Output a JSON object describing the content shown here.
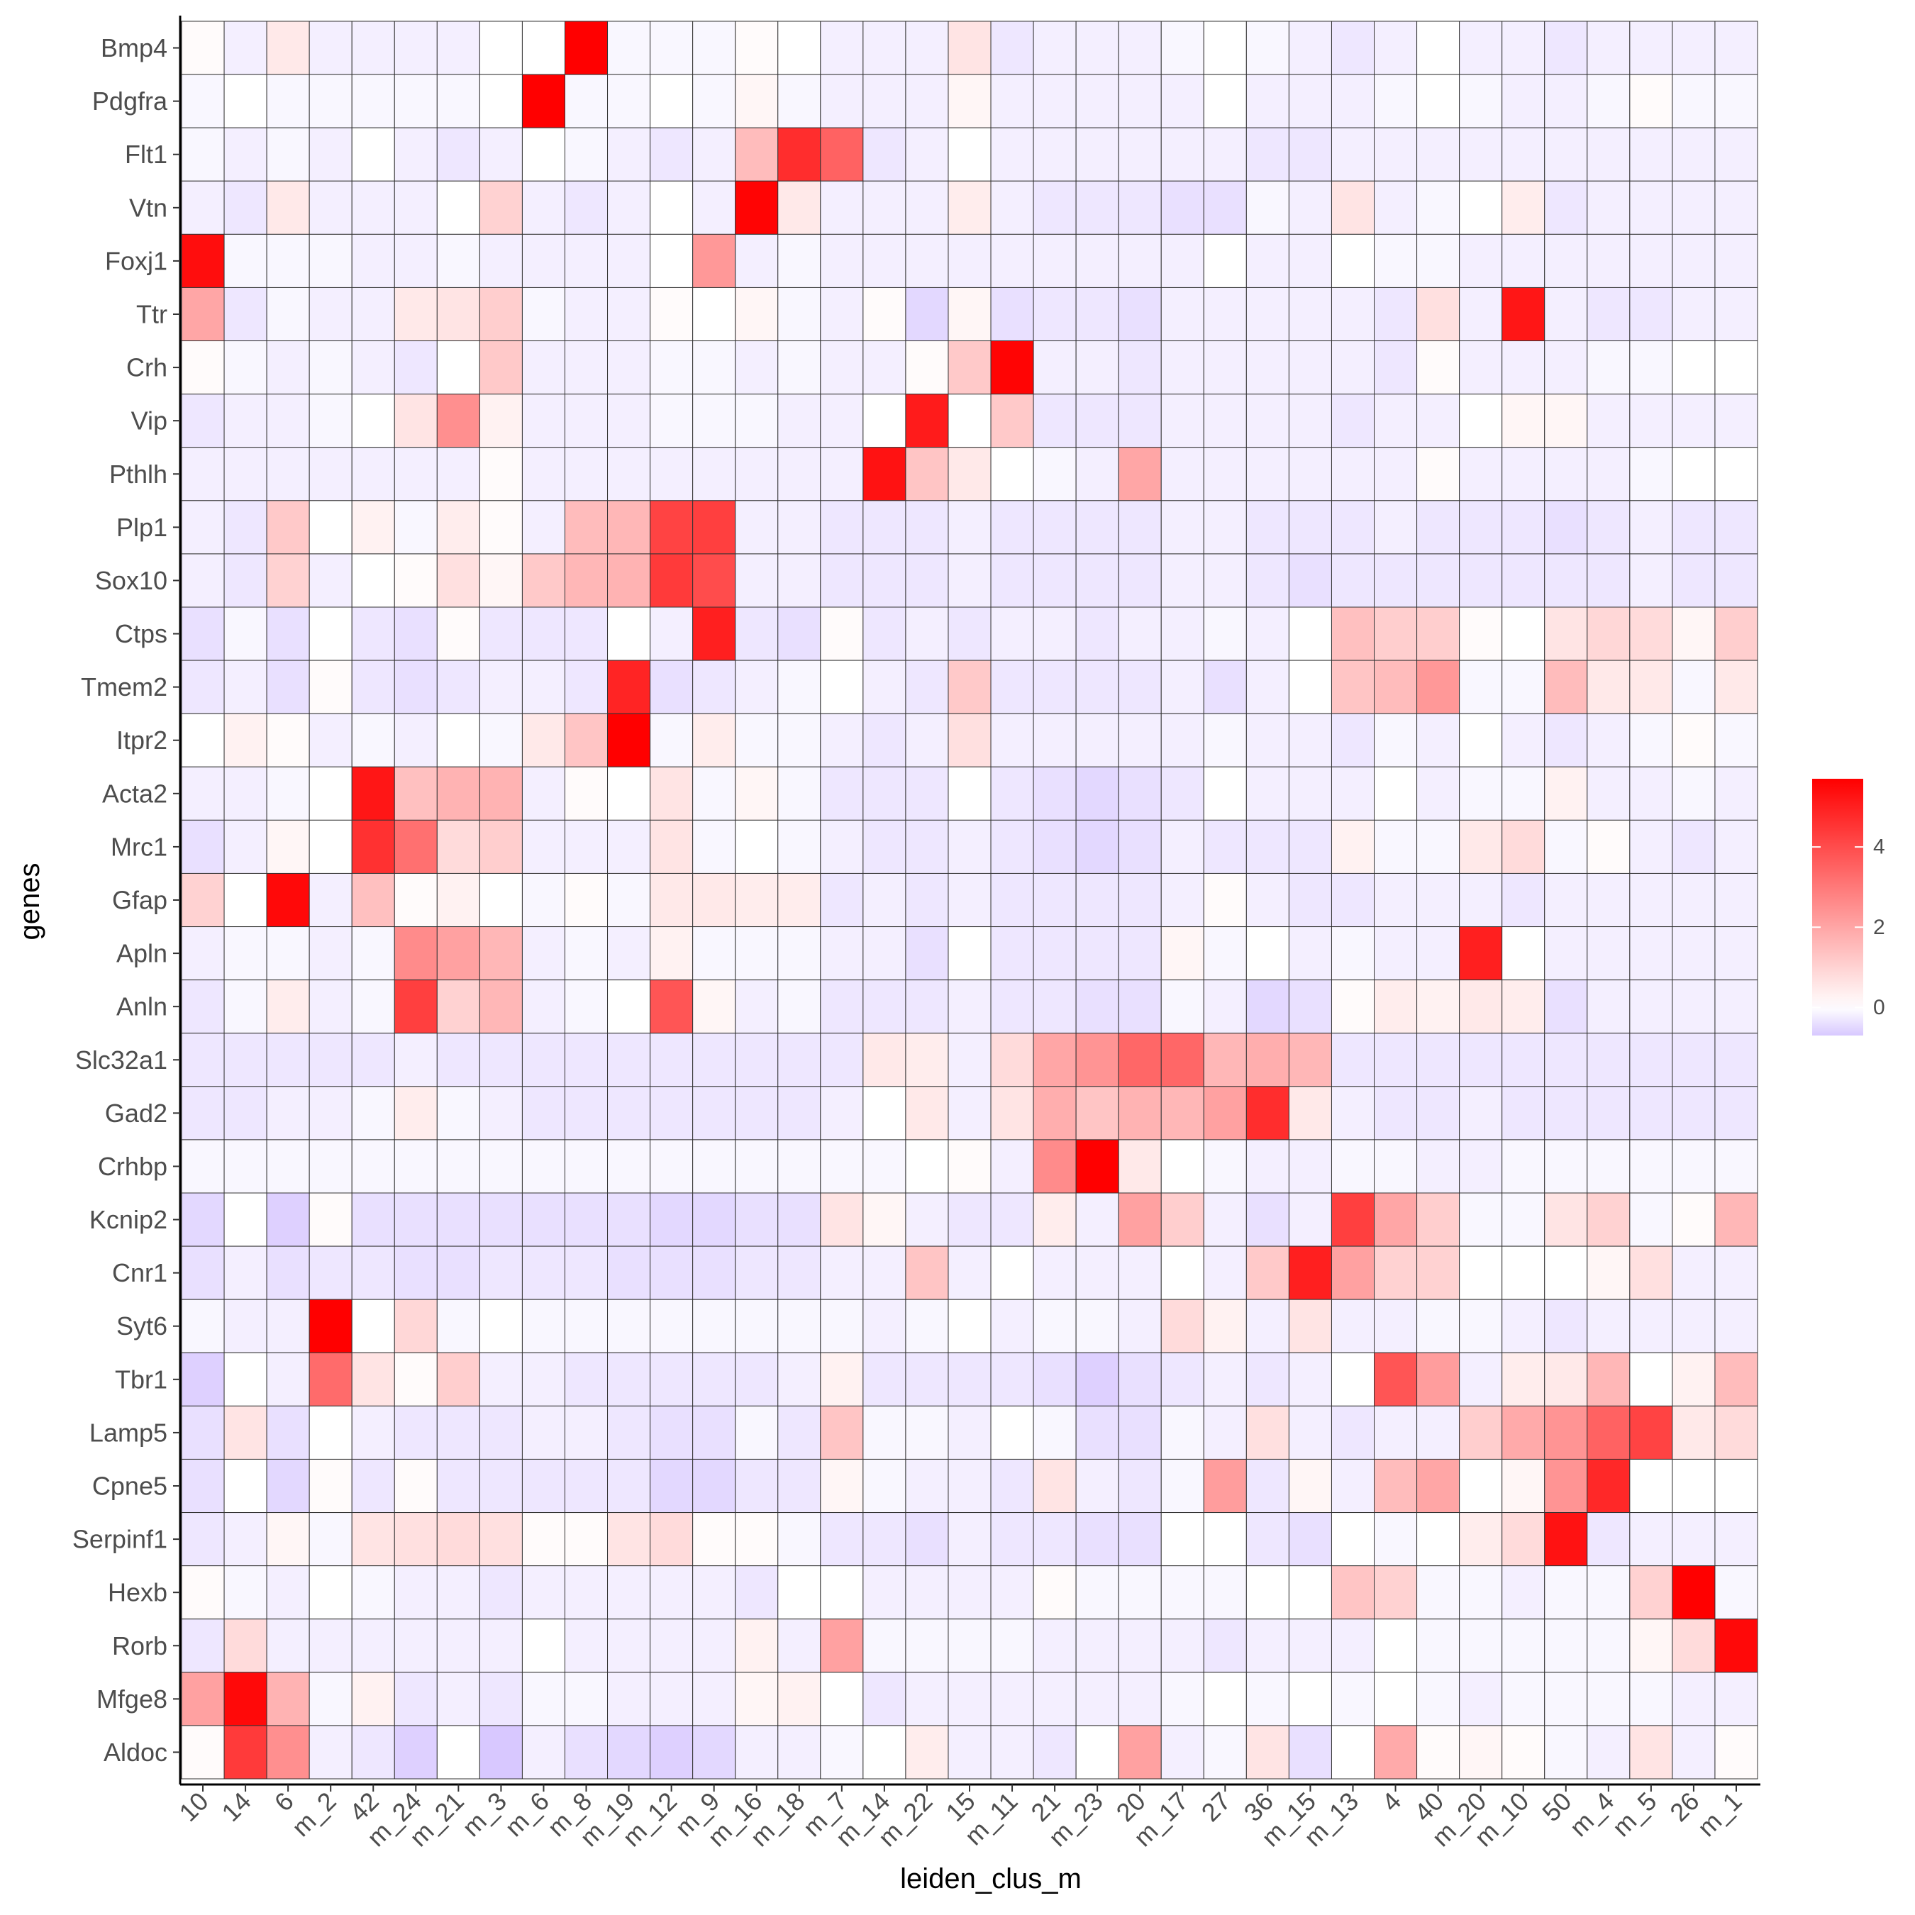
{
  "chart_data": {
    "type": "heatmap",
    "xlabel": "leiden_clus_m",
    "ylabel": "genes",
    "x_categories": [
      "10",
      "14",
      "6",
      "m_2",
      "42",
      "m_24",
      "m_21",
      "m_3",
      "m_6",
      "m_8",
      "m_19",
      "m_12",
      "m_9",
      "m_16",
      "m_18",
      "m_7",
      "m_14",
      "m_22",
      "15",
      "m_11",
      "21",
      "m_23",
      "20",
      "m_17",
      "27",
      "36",
      "m_15",
      "m_13",
      "4",
      "40",
      "m_20",
      "m_10",
      "50",
      "m_4",
      "m_5",
      "26",
      "m_1"
    ],
    "y_categories": [
      "Bmp4",
      "Pdgfra",
      "Flt1",
      "Vtn",
      "Foxj1",
      "Ttr",
      "Crh",
      "Vip",
      "Pthlh",
      "Plp1",
      "Sox10",
      "Ctps",
      "Tmem2",
      "Itpr2",
      "Acta2",
      "Mrc1",
      "Gfap",
      "Apln",
      "Anln",
      "Slc32a1",
      "Gad2",
      "Crhbp",
      "Kcnip2",
      "Cnr1",
      "Syt6",
      "Tbr1",
      "Lamp5",
      "Cpne5",
      "Serpinf1",
      "Hexb",
      "Rorb",
      "Mfge8",
      "Aldoc"
    ],
    "values": [
      [
        0.1,
        -0.2,
        0.5,
        -0.2,
        -0.2,
        -0.2,
        -0.2,
        0,
        0,
        5.7,
        -0.1,
        -0.1,
        -0.1,
        0.1,
        0,
        -0.2,
        -0.2,
        -0.2,
        0.6,
        -0.3,
        -0.2,
        -0.2,
        -0.2,
        -0.1,
        0,
        -0.1,
        -0.2,
        -0.3,
        -0.2,
        0,
        -0.2,
        -0.2,
        -0.3,
        -0.2,
        -0.2,
        -0.2,
        -0.2
      ],
      [
        -0.1,
        0,
        -0.1,
        -0.1,
        -0.1,
        -0.1,
        -0.1,
        0,
        5.7,
        -0.1,
        -0.1,
        0,
        -0.1,
        0.2,
        -0.1,
        -0.2,
        -0.2,
        -0.2,
        0.2,
        -0.2,
        -0.2,
        -0.2,
        -0.2,
        -0.2,
        0,
        -0.2,
        -0.2,
        -0.2,
        -0.1,
        0,
        -0.1,
        -0.2,
        -0.2,
        -0.1,
        0.1,
        -0.1,
        -0.1
      ],
      [
        -0.1,
        -0.2,
        -0.1,
        -0.2,
        0,
        -0.2,
        -0.3,
        -0.2,
        0,
        -0.1,
        -0.2,
        -0.3,
        -0.2,
        1.5,
        4.7,
        3.5,
        -0.3,
        -0.2,
        0,
        -0.2,
        -0.2,
        -0.2,
        -0.2,
        -0.2,
        -0.2,
        -0.3,
        -0.3,
        -0.2,
        -0.2,
        -0.2,
        -0.2,
        -0.2,
        -0.2,
        -0.2,
        -0.2,
        -0.2,
        -0.2
      ],
      [
        -0.2,
        -0.3,
        0.5,
        -0.2,
        -0.2,
        -0.2,
        0,
        1.0,
        -0.2,
        -0.3,
        -0.2,
        0,
        -0.2,
        5.6,
        0.5,
        -0.2,
        -0.2,
        -0.2,
        0.4,
        -0.2,
        -0.3,
        -0.3,
        -0.3,
        -0.4,
        -0.4,
        -0.1,
        -0.2,
        0.6,
        -0.2,
        -0.1,
        0,
        0.4,
        -0.3,
        -0.2,
        -0.2,
        -0.2,
        -0.2
      ],
      [
        5.4,
        -0.1,
        -0.1,
        -0.1,
        -0.2,
        -0.2,
        -0.1,
        -0.2,
        -0.2,
        -0.2,
        -0.2,
        0,
        2.3,
        -0.2,
        -0.1,
        -0.2,
        -0.2,
        -0.2,
        -0.2,
        -0.2,
        -0.2,
        -0.2,
        -0.2,
        -0.2,
        0,
        -0.2,
        -0.2,
        0,
        -0.1,
        -0.1,
        -0.2,
        -0.2,
        -0.2,
        -0.2,
        -0.2,
        -0.2,
        -0.2
      ],
      [
        2.0,
        -0.3,
        -0.1,
        -0.2,
        -0.2,
        0.5,
        0.6,
        1.1,
        -0.1,
        -0.2,
        -0.2,
        0.1,
        0,
        0.2,
        -0.1,
        -0.2,
        0.1,
        -0.5,
        0.2,
        -0.4,
        -0.3,
        -0.3,
        -0.4,
        -0.2,
        -0.2,
        -0.2,
        -0.2,
        -0.2,
        -0.3,
        0.7,
        -0.2,
        5.2,
        -0.2,
        -0.3,
        -0.3,
        -0.2,
        -0.2
      ],
      [
        0.1,
        -0.1,
        -0.2,
        -0.1,
        -0.2,
        -0.3,
        0,
        1.2,
        -0.2,
        -0.2,
        -0.2,
        -0.1,
        -0.1,
        -0.2,
        -0.1,
        -0.2,
        -0.2,
        0.1,
        1.2,
        5.6,
        -0.2,
        -0.2,
        -0.3,
        -0.2,
        -0.2,
        -0.2,
        -0.2,
        -0.2,
        -0.3,
        0.1,
        -0.2,
        -0.2,
        -0.2,
        -0.1,
        -0.1,
        0,
        0
      ],
      [
        -0.3,
        -0.2,
        -0.2,
        -0.1,
        0,
        0.6,
        2.5,
        0.3,
        -0.2,
        -0.2,
        -0.2,
        -0.1,
        -0.1,
        -0.1,
        -0.2,
        -0.2,
        0,
        5.1,
        0,
        1.2,
        -0.3,
        -0.3,
        -0.3,
        -0.2,
        -0.2,
        -0.2,
        -0.2,
        -0.3,
        -0.2,
        -0.2,
        0,
        0.2,
        0.2,
        -0.2,
        -0.2,
        -0.2,
        -0.2
      ],
      [
        -0.2,
        -0.2,
        -0.2,
        -0.2,
        -0.2,
        -0.2,
        -0.2,
        0.1,
        -0.2,
        -0.2,
        -0.2,
        -0.2,
        -0.2,
        -0.2,
        -0.2,
        -0.2,
        5.3,
        1.3,
        0.5,
        0,
        -0.1,
        -0.2,
        2.0,
        -0.2,
        -0.2,
        -0.2,
        -0.2,
        -0.2,
        -0.2,
        0.1,
        -0.2,
        -0.2,
        -0.2,
        -0.2,
        -0.1,
        0,
        0
      ],
      [
        -0.2,
        -0.3,
        1.2,
        0,
        0.3,
        -0.1,
        0.4,
        0.1,
        -0.2,
        1.5,
        1.6,
        4.2,
        4.3,
        -0.2,
        -0.2,
        -0.3,
        -0.3,
        -0.3,
        -0.2,
        -0.3,
        -0.3,
        -0.3,
        -0.3,
        -0.2,
        -0.2,
        -0.3,
        -0.3,
        -0.3,
        -0.2,
        -0.3,
        -0.3,
        -0.3,
        -0.4,
        -0.3,
        -0.2,
        -0.3,
        -0.3
      ],
      [
        -0.2,
        -0.3,
        1.0,
        -0.2,
        0,
        0.1,
        0.7,
        0.2,
        1.2,
        1.6,
        1.7,
        4.4,
        4.0,
        -0.2,
        -0.2,
        -0.3,
        -0.3,
        -0.3,
        -0.2,
        -0.3,
        -0.3,
        -0.3,
        -0.3,
        -0.2,
        -0.2,
        -0.3,
        -0.4,
        -0.3,
        -0.3,
        -0.3,
        -0.3,
        -0.3,
        -0.3,
        -0.3,
        -0.2,
        -0.3,
        -0.3
      ],
      [
        -0.4,
        -0.1,
        -0.4,
        0,
        -0.3,
        -0.4,
        0.1,
        -0.3,
        -0.3,
        -0.3,
        0,
        -0.2,
        5.0,
        -0.3,
        -0.4,
        0.1,
        -0.3,
        -0.2,
        -0.3,
        -0.2,
        -0.2,
        -0.3,
        -0.2,
        -0.2,
        -0.1,
        -0.2,
        0,
        1.4,
        1.1,
        1.1,
        0.1,
        0,
        0.6,
        0.9,
        0.8,
        0.2,
        1.1
      ],
      [
        -0.3,
        -0.2,
        -0.4,
        0.1,
        -0.3,
        -0.4,
        -0.3,
        -0.2,
        -0.2,
        -0.3,
        4.9,
        -0.4,
        -0.3,
        -0.2,
        -0.1,
        0,
        -0.2,
        -0.3,
        1.2,
        -0.3,
        -0.3,
        -0.3,
        -0.3,
        -0.2,
        -0.4,
        -0.2,
        0,
        1.3,
        1.5,
        2.3,
        -0.1,
        -0.1,
        1.5,
        0.5,
        0.5,
        -0.1,
        0.5
      ],
      [
        0,
        0.3,
        0.1,
        -0.2,
        -0.1,
        -0.2,
        0,
        -0.1,
        0.5,
        1.3,
        5.7,
        -0.1,
        0.4,
        -0.1,
        -0.1,
        -0.2,
        -0.3,
        -0.2,
        0.7,
        -0.2,
        -0.2,
        -0.2,
        -0.2,
        -0.2,
        -0.1,
        -0.2,
        -0.2,
        -0.3,
        -0.1,
        -0.2,
        0,
        -0.2,
        -0.3,
        -0.2,
        -0.1,
        0.1,
        -0.1
      ],
      [
        -0.2,
        -0.2,
        -0.1,
        0,
        5.2,
        1.4,
        1.7,
        1.7,
        -0.2,
        0.1,
        0,
        0.6,
        -0.1,
        0.2,
        -0.1,
        -0.3,
        -0.3,
        -0.3,
        0,
        -0.3,
        -0.4,
        -0.5,
        -0.4,
        -0.3,
        0,
        -0.2,
        -0.2,
        -0.2,
        0,
        -0.2,
        -0.1,
        -0.1,
        0.3,
        -0.2,
        -0.2,
        -0.1,
        -0.2
      ],
      [
        -0.4,
        -0.2,
        0.2,
        0,
        4.6,
        3.2,
        0.8,
        1.1,
        -0.2,
        -0.2,
        -0.2,
        0.6,
        -0.1,
        0,
        -0.1,
        -0.2,
        -0.3,
        -0.3,
        -0.2,
        -0.3,
        -0.4,
        -0.5,
        -0.4,
        -0.2,
        -0.3,
        -0.3,
        -0.3,
        0.3,
        -0.1,
        -0.1,
        0.5,
        0.8,
        -0.1,
        0.1,
        -0.2,
        -0.3,
        -0.2
      ],
      [
        1.0,
        0,
        5.5,
        -0.2,
        1.4,
        0.1,
        0.3,
        0,
        -0.1,
        0.1,
        -0.1,
        0.5,
        0.5,
        0.4,
        0.4,
        -0.3,
        -0.2,
        -0.3,
        -0.2,
        -0.3,
        -0.3,
        -0.3,
        -0.3,
        -0.2,
        0.1,
        -0.2,
        -0.3,
        -0.3,
        -0.2,
        -0.2,
        -0.2,
        -0.3,
        -0.2,
        -0.2,
        -0.2,
        -0.2,
        -0.2
      ],
      [
        -0.2,
        -0.1,
        -0.1,
        -0.2,
        -0.1,
        2.6,
        2.1,
        1.6,
        -0.2,
        -0.1,
        -0.2,
        0.3,
        -0.1,
        -0.1,
        -0.1,
        -0.2,
        -0.2,
        -0.4,
        0,
        -0.3,
        -0.3,
        -0.3,
        -0.3,
        0.2,
        -0.1,
        0,
        -0.2,
        -0.1,
        -0.2,
        -0.2,
        5.0,
        0,
        -0.2,
        -0.2,
        -0.2,
        -0.2,
        -0.2
      ],
      [
        -0.3,
        -0.1,
        0.4,
        -0.2,
        -0.1,
        4.3,
        1.0,
        1.6,
        -0.2,
        -0.1,
        0,
        3.8,
        0.2,
        -0.2,
        -0.1,
        -0.3,
        -0.3,
        -0.3,
        -0.2,
        -0.3,
        -0.3,
        -0.4,
        -0.4,
        -0.1,
        -0.2,
        -0.5,
        -0.4,
        0.1,
        0.4,
        0.3,
        0.5,
        0.4,
        -0.4,
        -0.2,
        -0.2,
        -0.2,
        -0.2
      ],
      [
        -0.3,
        -0.3,
        -0.3,
        -0.3,
        -0.3,
        -0.2,
        -0.3,
        -0.3,
        -0.3,
        -0.3,
        -0.3,
        -0.3,
        -0.3,
        -0.3,
        -0.3,
        -0.3,
        0.5,
        0.4,
        -0.2,
        0.8,
        2.0,
        2.4,
        3.4,
        3.4,
        1.6,
        1.8,
        1.6,
        -0.3,
        -0.3,
        -0.3,
        -0.3,
        -0.3,
        -0.3,
        -0.3,
        -0.3,
        -0.3,
        -0.3
      ],
      [
        -0.3,
        -0.3,
        -0.2,
        -0.2,
        -0.1,
        0.4,
        -0.1,
        -0.2,
        -0.3,
        -0.3,
        -0.3,
        -0.3,
        -0.3,
        -0.3,
        -0.3,
        -0.2,
        0,
        0.5,
        -0.2,
        0.6,
        1.8,
        1.3,
        1.7,
        1.6,
        2.1,
        4.7,
        0.5,
        -0.2,
        -0.3,
        -0.3,
        -0.2,
        -0.3,
        -0.3,
        -0.3,
        -0.3,
        -0.3,
        -0.3
      ],
      [
        -0.1,
        -0.1,
        -0.1,
        -0.1,
        -0.1,
        -0.1,
        -0.1,
        -0.1,
        -0.1,
        -0.1,
        -0.1,
        -0.1,
        -0.1,
        -0.1,
        -0.1,
        -0.1,
        -0.1,
        0,
        0.1,
        -0.2,
        2.6,
        5.7,
        0.5,
        0,
        -0.1,
        -0.2,
        -0.2,
        -0.1,
        -0.1,
        -0.2,
        -0.2,
        -0.1,
        -0.1,
        -0.1,
        -0.1,
        -0.1,
        -0.1
      ],
      [
        -0.5,
        0,
        -0.6,
        0.1,
        -0.4,
        -0.4,
        -0.4,
        -0.4,
        -0.4,
        -0.4,
        -0.4,
        -0.5,
        -0.5,
        -0.4,
        -0.4,
        0.6,
        0.2,
        -0.2,
        -0.3,
        -0.3,
        0.4,
        -0.2,
        2.1,
        1.1,
        -0.2,
        -0.4,
        -0.2,
        4.3,
        2.0,
        1.1,
        -0.1,
        -0.1,
        0.6,
        1.0,
        -0.1,
        0.1,
        1.6
      ],
      [
        -0.4,
        -0.2,
        -0.4,
        -0.3,
        -0.3,
        -0.4,
        -0.4,
        -0.3,
        -0.3,
        -0.3,
        -0.4,
        -0.4,
        -0.4,
        -0.3,
        -0.3,
        -0.2,
        -0.2,
        1.3,
        -0.2,
        0,
        -0.2,
        -0.2,
        -0.2,
        0,
        -0.2,
        1.2,
        5.0,
        2.1,
        1.0,
        1.0,
        0,
        0,
        0,
        0.2,
        0.7,
        -0.2,
        -0.2
      ],
      [
        -0.1,
        -0.2,
        -0.2,
        5.7,
        0,
        0.9,
        -0.1,
        0,
        -0.1,
        -0.1,
        -0.1,
        -0.1,
        -0.1,
        -0.1,
        -0.1,
        -0.1,
        -0.2,
        -0.1,
        0,
        -0.2,
        -0.1,
        -0.1,
        -0.2,
        0.8,
        0.3,
        -0.2,
        0.6,
        -0.2,
        -0.2,
        -0.1,
        -0.1,
        -0.2,
        -0.3,
        -0.2,
        -0.2,
        -0.2,
        -0.2
      ],
      [
        -0.6,
        0,
        -0.2,
        3.3,
        0.6,
        0.1,
        1.1,
        -0.2,
        -0.2,
        -0.3,
        -0.3,
        -0.3,
        -0.3,
        -0.3,
        -0.2,
        0.3,
        -0.3,
        -0.3,
        -0.3,
        -0.3,
        -0.4,
        -0.6,
        -0.4,
        -0.3,
        -0.2,
        -0.3,
        -0.2,
        0,
        3.8,
        2.2,
        -0.2,
        0.4,
        0.5,
        1.6,
        0,
        0.3,
        1.5
      ],
      [
        -0.4,
        0.6,
        -0.4,
        0,
        -0.2,
        -0.3,
        -0.3,
        -0.3,
        -0.2,
        -0.2,
        -0.3,
        -0.4,
        -0.4,
        -0.1,
        -0.3,
        1.3,
        -0.1,
        -0.1,
        -0.2,
        0,
        -0.1,
        -0.4,
        -0.4,
        -0.1,
        -0.2,
        0.7,
        -0.2,
        -0.3,
        -0.2,
        -0.2,
        1.1,
        1.9,
        2.4,
        3.5,
        4.2,
        0.5,
        0.8
      ],
      [
        -0.4,
        0,
        -0.5,
        0.1,
        -0.3,
        0.1,
        -0.3,
        -0.3,
        -0.3,
        -0.3,
        -0.3,
        -0.5,
        -0.5,
        -0.3,
        -0.3,
        0.2,
        -0.1,
        -0.2,
        -0.2,
        -0.3,
        0.6,
        -0.2,
        -0.3,
        -0.1,
        2.2,
        -0.3,
        0.2,
        -0.2,
        1.5,
        2.0,
        0,
        0.2,
        2.4,
        4.8,
        0,
        0,
        0
      ],
      [
        -0.3,
        -0.2,
        0.2,
        -0.1,
        0.6,
        0.7,
        0.8,
        0.7,
        0.1,
        0.1,
        0.6,
        0.8,
        0.1,
        0.1,
        -0.1,
        -0.3,
        -0.3,
        -0.4,
        -0.2,
        -0.3,
        -0.3,
        -0.4,
        -0.4,
        0,
        0,
        -0.3,
        -0.4,
        0,
        -0.1,
        0,
        0.4,
        0.8,
        5.3,
        -0.3,
        -0.2,
        -0.2,
        -0.2
      ],
      [
        0.1,
        -0.1,
        -0.2,
        0,
        -0.1,
        -0.2,
        -0.2,
        -0.3,
        -0.2,
        -0.2,
        -0.2,
        -0.2,
        -0.2,
        -0.3,
        0,
        0,
        -0.2,
        -0.2,
        -0.2,
        -0.2,
        0.1,
        -0.1,
        -0.1,
        -0.1,
        -0.1,
        0,
        0,
        1.3,
        1.0,
        -0.1,
        -0.1,
        -0.2,
        -0.1,
        -0.1,
        1.0,
        5.7,
        -0.1
      ],
      [
        -0.3,
        0.8,
        -0.2,
        -0.2,
        -0.2,
        -0.2,
        -0.2,
        -0.2,
        0,
        -0.2,
        -0.2,
        -0.2,
        -0.2,
        0.3,
        -0.2,
        2.1,
        -0.1,
        -0.1,
        -0.1,
        -0.1,
        -0.2,
        -0.2,
        -0.2,
        -0.2,
        -0.3,
        -0.2,
        -0.2,
        -0.2,
        0,
        -0.1,
        -0.1,
        -0.1,
        -0.1,
        -0.1,
        0.2,
        0.8,
        5.5
      ],
      [
        2.1,
        5.5,
        1.7,
        -0.1,
        0.3,
        -0.3,
        -0.2,
        -0.3,
        -0.1,
        -0.1,
        -0.2,
        -0.2,
        -0.2,
        0.2,
        0.3,
        0,
        -0.3,
        -0.2,
        -0.2,
        -0.2,
        -0.2,
        -0.2,
        -0.2,
        -0.1,
        0,
        -0.1,
        0,
        -0.1,
        0,
        -0.1,
        -0.2,
        -0.1,
        -0.1,
        -0.1,
        -0.1,
        -0.2,
        -0.2
      ],
      [
        0.1,
        4.4,
        2.5,
        -0.2,
        -0.3,
        -0.6,
        0,
        -0.7,
        -0.2,
        -0.4,
        -0.5,
        -0.6,
        -0.5,
        -0.2,
        -0.2,
        -0.1,
        0,
        0.4,
        -0.2,
        -0.2,
        -0.3,
        0,
        2.1,
        -0.2,
        -0.1,
        0.6,
        -0.4,
        0,
        1.9,
        0.1,
        0.2,
        0.1,
        -0.1,
        -0.2,
        0.6,
        -0.2,
        0.1
      ]
    ],
    "colorscale": {
      "low": "#d8c8ff",
      "mid": "#ffffff",
      "high": "#ff0000",
      "min": -0.7,
      "mid_value": 0,
      "max": 5.7
    },
    "legend": {
      "position": "right",
      "ticks": [
        0,
        2,
        4
      ]
    }
  }
}
